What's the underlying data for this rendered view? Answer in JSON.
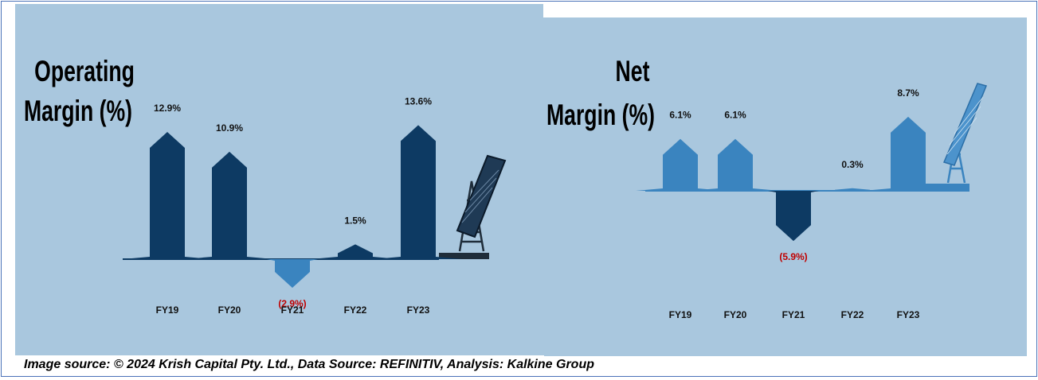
{
  "colors": {
    "background": "#a9c7de",
    "dark_navy": "#0d3a63",
    "mid_blue": "#3a84bf",
    "negative_label": "#c00000",
    "label": "#111111"
  },
  "chart_data": [
    {
      "type": "bar",
      "title_line1": "Operating",
      "title_line2": "Margin (%)",
      "categories": [
        "FY19",
        "FY20",
        "FY21",
        "FY22",
        "FY23"
      ],
      "values": [
        12.9,
        10.9,
        -2.9,
        1.5,
        13.6
      ],
      "value_labels": [
        "12.9%",
        "10.9%",
        "(2.9%)",
        "1.5%",
        "13.6%"
      ],
      "positive_color": "#0d3a63",
      "negative_color": "#3a84bf",
      "decorative_icon": "solar-panel-icon"
    },
    {
      "type": "bar",
      "title_line1": "Net",
      "title_line2": "Margin (%)",
      "categories": [
        "FY19",
        "FY20",
        "FY21",
        "FY22",
        "FY23"
      ],
      "values": [
        6.1,
        6.1,
        -5.9,
        0.3,
        8.7
      ],
      "value_labels": [
        "6.1%",
        "6.1%",
        "(5.9%)",
        "0.3%",
        "8.7%"
      ],
      "positive_color": "#3a84bf",
      "negative_color": "#0d3a63",
      "decorative_icon": "solar-panel-icon"
    }
  ],
  "footer": {
    "source_text": "Image source: © 2024 Krish Capital Pty. Ltd., Data Source: REFINITIV, Analysis: Kalkine Group"
  }
}
